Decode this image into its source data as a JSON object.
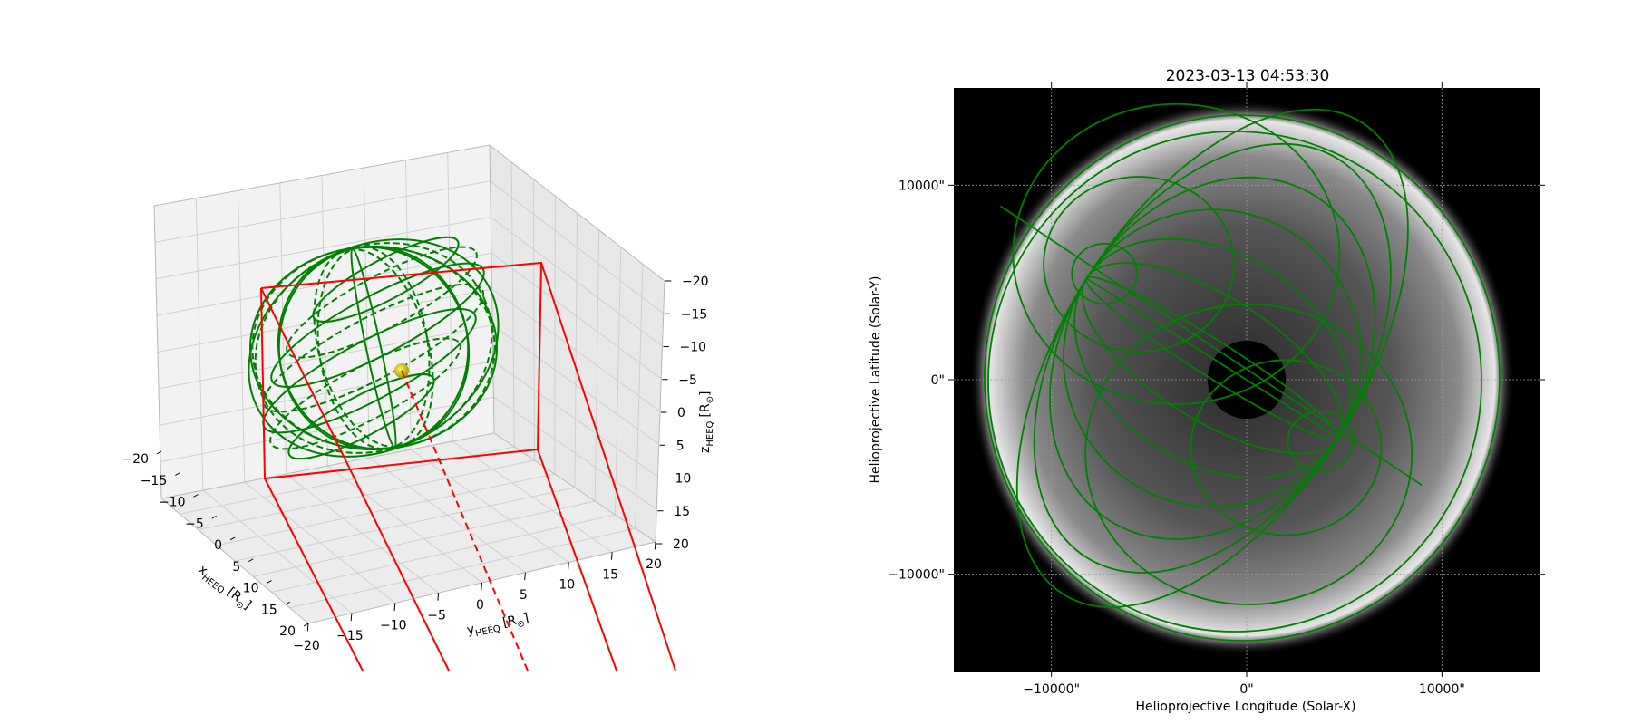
{
  "chart_data": [
    {
      "type": "3d-wireframe",
      "panel": "left",
      "xlabel": "x",
      "xlabel_sub": "HEEQ",
      "xlabel_unit": "[R",
      "ylabel": "y",
      "ylabel_sub": "HEEQ",
      "ylabel_unit": "[R",
      "zlabel": "z",
      "zlabel_sub": "HEEQ",
      "zlabel_unit": "[R",
      "sun_symbol": "⊙",
      "unit_close": "]",
      "xlim": [
        -20,
        20
      ],
      "ylim": [
        -20,
        20
      ],
      "zlim": [
        -20,
        20
      ],
      "xticks": [
        "−20",
        "−15",
        "−10",
        "−5",
        "0",
        "5",
        "10",
        "15",
        "20"
      ],
      "yticks": [
        "−20",
        "−15",
        "−10",
        "−5",
        "0",
        "5",
        "10",
        "15",
        "20"
      ],
      "zticks": [
        "−20",
        "−15",
        "−10",
        "−5",
        "0",
        "5",
        "10",
        "15",
        "20"
      ],
      "grid": true,
      "series": [
        {
          "kind": "sphere-wireframe-solid",
          "color": "#008000",
          "center": [
            0,
            0,
            0
          ],
          "radius": 13
        },
        {
          "kind": "sphere-wireframe-dashed",
          "color": "#008000",
          "center": [
            0,
            0,
            0
          ],
          "radius": 13
        },
        {
          "kind": "sun-marker",
          "color": "#d4c400",
          "center": [
            0,
            0,
            0
          ]
        },
        {
          "kind": "fov-box",
          "color": "#ff0000"
        }
      ]
    },
    {
      "type": "image",
      "panel": "right",
      "title": "2023-03-13 04:53:30",
      "xlabel": "Helioprojective Longitude (Solar-X)",
      "ylabel": "Helioprojective Latitude (Solar-Y)",
      "xticks": [
        {
          "value": -10000,
          "label": "−10000\""
        },
        {
          "value": 0,
          "label": "0\""
        },
        {
          "value": 10000,
          "label": "10000\""
        }
      ],
      "yticks": [
        {
          "value": 10000,
          "label": "10000\""
        },
        {
          "value": 0,
          "label": "0\""
        },
        {
          "value": -10000,
          "label": "−10000\""
        }
      ],
      "xlim": [
        -15000,
        15000
      ],
      "ylim": [
        -15000,
        15000
      ],
      "grid": true,
      "occulter_radius": 2000,
      "overlay_color": "#008000",
      "poles": [
        [
          -8200,
          5200
        ],
        [
          4700,
          -3000
        ]
      ]
    }
  ]
}
